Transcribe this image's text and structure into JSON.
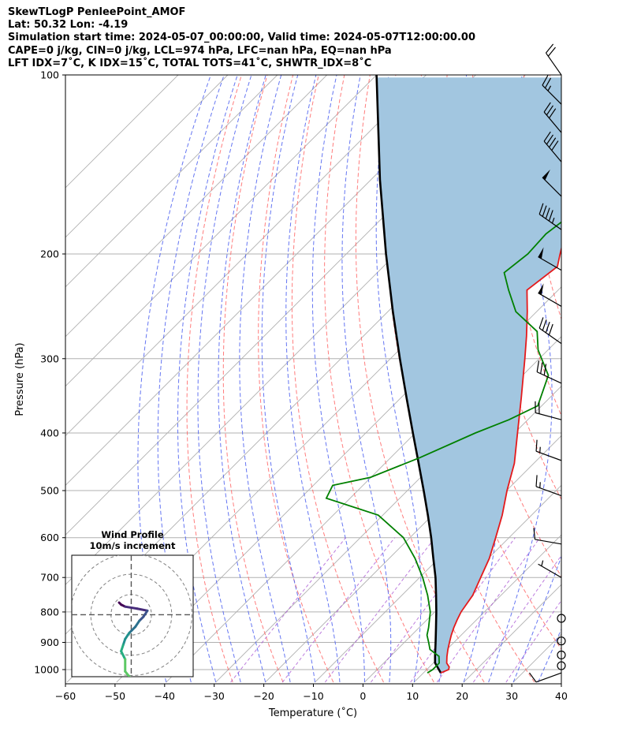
{
  "header": {
    "line1": "SkewTLogP PenleePoint_AMOF",
    "line2": "Lat: 50.32   Lon: -4.19",
    "line3": "Simulation start time: 2024-05-07_00:00:00, Valid time: 2024-05-07T12:00:00.00",
    "line4": "CAPE=0 j/kg, CIN=0 j/kg, LCL=974 hPa, LFC=nan hPa, EQ=nan hPa",
    "line5": "LFT IDX=7˚C, K IDX=15˚C, TOTAL TOTS=41˚C, SHWTR_IDX=8˚C"
  },
  "chart_data": {
    "type": "line",
    "subtype": "skew-t log-p",
    "xlabel": "Temperature (˚C)",
    "ylabel": "Pressure (hPa)",
    "xlim": [
      -60,
      40
    ],
    "ylim": [
      1050,
      100
    ],
    "xticks": [
      -60,
      -50,
      -40,
      -30,
      -20,
      -10,
      0,
      10,
      20,
      30,
      40
    ],
    "xtick_labels": [
      "−60",
      "−50",
      "−40",
      "−30",
      "−20",
      "−10",
      "0",
      "10",
      "20",
      "30",
      "40"
    ],
    "yticks": [
      1000,
      900,
      800,
      700,
      600,
      500,
      400,
      300,
      200,
      100
    ],
    "ytick_labels": [
      "1000",
      "900",
      "800",
      "700",
      "600",
      "500",
      "400",
      "300",
      "200",
      "100"
    ],
    "grid": true,
    "colors": {
      "temperature": "#e41a1c",
      "dewpoint": "#008000",
      "parcel": "#000000",
      "cape_fill": "#a2c6e0",
      "dry_adiabats": "#ff6666",
      "moist_adiabats": "#4a5ef0",
      "mixing_ratio": "#a64fd1",
      "isotherms": "#b0b0b0"
    },
    "series": [
      {
        "role": "temperature",
        "points": [
          [
            1013,
            13.5
          ],
          [
            1000,
            14.4
          ],
          [
            990,
            14.0
          ],
          [
            975,
            12.7
          ],
          [
            950,
            11.4
          ],
          [
            925,
            10.2
          ],
          [
            900,
            9.1
          ],
          [
            875,
            8.0
          ],
          [
            850,
            7.0
          ],
          [
            825,
            6.1
          ],
          [
            800,
            5.3
          ],
          [
            750,
            4.3
          ],
          [
            700,
            2.3
          ],
          [
            650,
            0.2
          ],
          [
            600,
            -2.7
          ],
          [
            550,
            -5.9
          ],
          [
            500,
            -9.9
          ],
          [
            450,
            -13.9
          ],
          [
            400,
            -19.4
          ],
          [
            350,
            -25.6
          ],
          [
            300,
            -32.9
          ],
          [
            275,
            -37.1
          ],
          [
            250,
            -41.9
          ],
          [
            230,
            -46.3
          ],
          [
            210,
            -44.9
          ],
          [
            200,
            -46.9
          ],
          [
            190,
            -48.9
          ],
          [
            175,
            -50.8
          ],
          [
            150,
            -51.5
          ],
          [
            140,
            -51.8
          ],
          [
            125,
            -52.0
          ],
          [
            115,
            -53.2
          ],
          [
            100,
            -55.0
          ]
        ]
      },
      {
        "role": "dewpoint",
        "points": [
          [
            1013,
            10.8
          ],
          [
            1000,
            11.2
          ],
          [
            975,
            11.2
          ],
          [
            950,
            9.8
          ],
          [
            925,
            6.6
          ],
          [
            900,
            4.9
          ],
          [
            875,
            3.1
          ],
          [
            850,
            1.9
          ],
          [
            800,
            -0.9
          ],
          [
            750,
            -4.8
          ],
          [
            700,
            -9.4
          ],
          [
            650,
            -14.8
          ],
          [
            600,
            -21.3
          ],
          [
            550,
            -30.9
          ],
          [
            515,
            -44.8
          ],
          [
            490,
            -46.1
          ],
          [
            475,
            -40.1
          ],
          [
            440,
            -34.1
          ],
          [
            400,
            -27.9
          ],
          [
            380,
            -23.8
          ],
          [
            360,
            -20.8
          ],
          [
            320,
            -24.8
          ],
          [
            290,
            -32.0
          ],
          [
            270,
            -35.9
          ],
          [
            250,
            -44.2
          ],
          [
            230,
            -50.0
          ],
          [
            215,
            -54.4
          ],
          [
            200,
            -53.4
          ],
          [
            185,
            -53.8
          ],
          [
            175,
            -52.9
          ],
          [
            160,
            -55.3
          ],
          [
            150,
            -58.1
          ],
          [
            140,
            -61.0
          ],
          [
            130,
            -58.8
          ],
          [
            110,
            -51.0
          ],
          [
            100,
            -50.0
          ]
        ]
      },
      {
        "role": "parcel",
        "points": [
          [
            1013,
            13.5
          ],
          [
            974,
            10.3
          ],
          [
            950,
            9.0
          ],
          [
            900,
            6.3
          ],
          [
            850,
            3.4
          ],
          [
            800,
            0.3
          ],
          [
            750,
            -3.1
          ],
          [
            700,
            -6.8
          ],
          [
            650,
            -11.1
          ],
          [
            600,
            -15.7
          ],
          [
            550,
            -20.9
          ],
          [
            500,
            -26.7
          ],
          [
            450,
            -33.2
          ],
          [
            400,
            -40.5
          ],
          [
            350,
            -48.7
          ],
          [
            300,
            -58.1
          ],
          [
            250,
            -69.0
          ],
          [
            200,
            -82.0
          ],
          [
            150,
            -98.2
          ],
          [
            100,
            -120.0
          ]
        ]
      }
    ],
    "wind_barbs": {
      "units": "kt",
      "levels": [
        {
          "p": 1013,
          "speed": 12,
          "dir": 250
        },
        {
          "p": 985,
          "speed": 2,
          "dir": 300
        },
        {
          "p": 945,
          "speed": 3,
          "dir": 300
        },
        {
          "p": 895,
          "speed": 2,
          "dir": 300
        },
        {
          "p": 820,
          "speed": 2,
          "dir": 270
        },
        {
          "p": 700,
          "speed": 8,
          "dir": 300
        },
        {
          "p": 615,
          "speed": 10,
          "dir": 280
        },
        {
          "p": 510,
          "speed": 15,
          "dir": 290
        },
        {
          "p": 445,
          "speed": 15,
          "dir": 290
        },
        {
          "p": 380,
          "speed": 20,
          "dir": 285
        },
        {
          "p": 330,
          "speed": 30,
          "dir": 295
        },
        {
          "p": 283,
          "speed": 40,
          "dir": 305
        },
        {
          "p": 245,
          "speed": 50,
          "dir": 300
        },
        {
          "p": 213,
          "speed": 50,
          "dir": 300
        },
        {
          "p": 182,
          "speed": 45,
          "dir": 305
        },
        {
          "p": 160,
          "speed": 50,
          "dir": 315
        },
        {
          "p": 140,
          "speed": 40,
          "dir": 320
        },
        {
          "p": 125,
          "speed": 30,
          "dir": 320
        },
        {
          "p": 112,
          "speed": 25,
          "dir": 315
        },
        {
          "p": 100,
          "speed": 20,
          "dir": 325
        }
      ]
    },
    "hodograph": {
      "title": "Wind Profile",
      "subtitle": "10m/s increment",
      "rings_ms": [
        10,
        20,
        30
      ],
      "limit_ms": 30,
      "colormap": "viridis",
      "points": [
        [
          -6,
          6
        ],
        [
          -5,
          5
        ],
        [
          -3,
          4
        ],
        [
          3,
          3
        ],
        [
          8,
          2
        ],
        [
          6,
          -1
        ],
        [
          4,
          -3
        ],
        [
          2,
          -6
        ],
        [
          -1,
          -9
        ],
        [
          -3,
          -12
        ],
        [
          -4,
          -15
        ],
        [
          -5,
          -18
        ],
        [
          -3,
          -22
        ],
        [
          -3,
          -28
        ],
        [
          1,
          -33
        ],
        [
          4,
          -37
        ],
        [
          6,
          -40
        ],
        [
          7,
          -46
        ],
        [
          8,
          -47
        ]
      ]
    }
  }
}
